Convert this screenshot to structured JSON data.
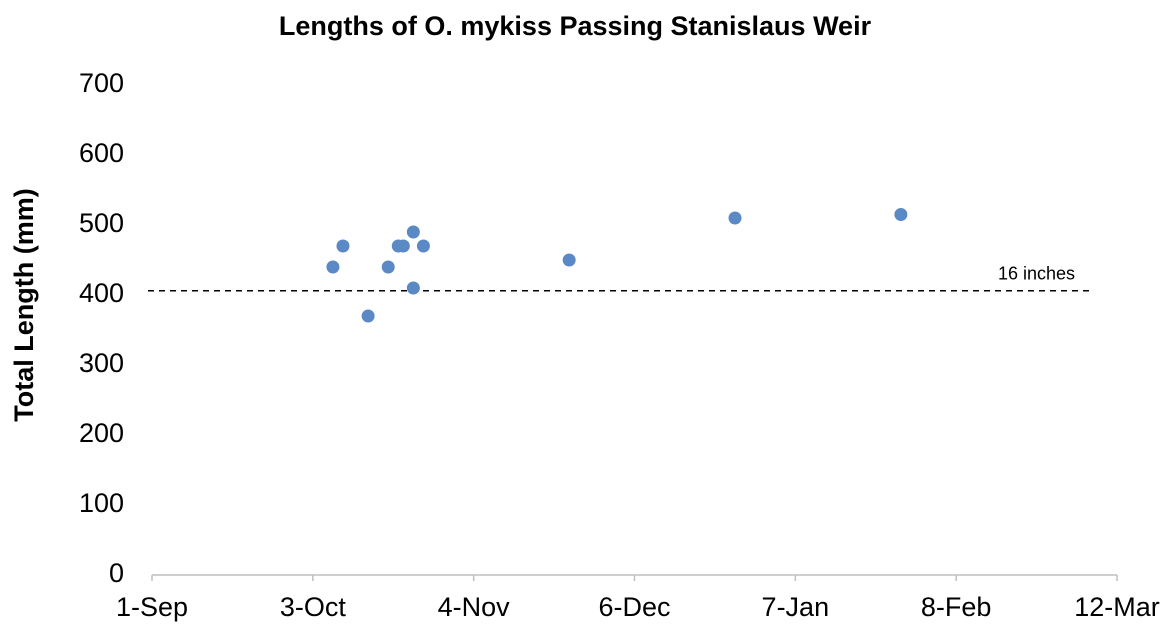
{
  "chart_data": {
    "type": "scatter",
    "title": "Lengths of O. mykiss Passing Stanislaus Weir",
    "y_label": "Total Length (mm)",
    "x": [
      36,
      38,
      43,
      47,
      49,
      50,
      52,
      52,
      54,
      83,
      116,
      149
    ],
    "values": [
      440,
      470,
      370,
      440,
      470,
      470,
      490,
      410,
      470,
      450,
      510,
      515
    ],
    "color": "#5a89c5",
    "xlim": [
      0,
      192
    ],
    "xticks": [
      {
        "value": 0,
        "label": "1-Sep"
      },
      {
        "value": 32,
        "label": "3-Oct"
      },
      {
        "value": 64,
        "label": "4-Nov"
      },
      {
        "value": 96,
        "label": "6-Dec"
      },
      {
        "value": 128,
        "label": "7-Jan"
      },
      {
        "value": 160,
        "label": "8-Feb"
      },
      {
        "value": 192,
        "label": "12-Mar"
      }
    ],
    "ylim": [
      0,
      700
    ],
    "yticks": [
      0,
      100,
      200,
      300,
      400,
      500,
      600,
      700
    ],
    "reference_line": {
      "value": 406,
      "label": "16 inches"
    },
    "grid": false
  }
}
